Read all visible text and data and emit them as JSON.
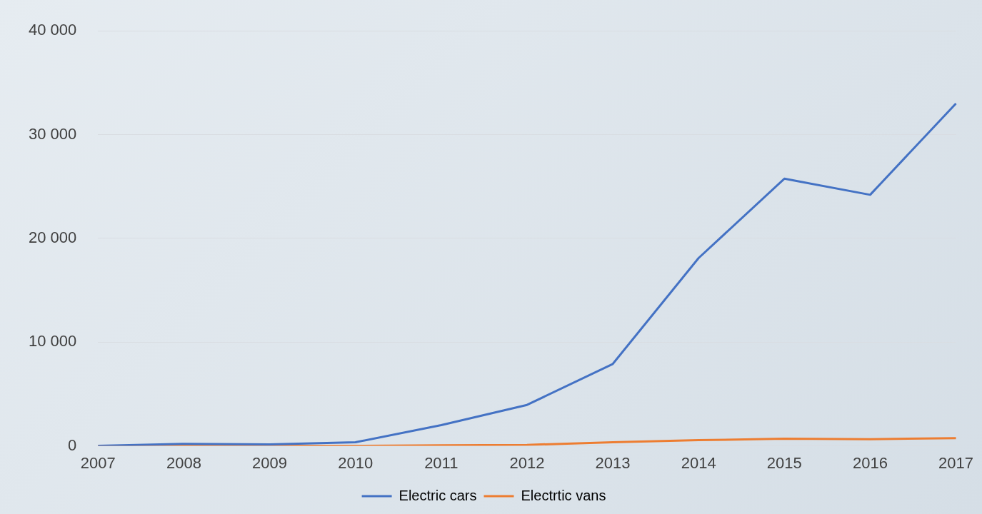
{
  "chart_data": {
    "type": "line",
    "categories": [
      "2007",
      "2008",
      "2009",
      "2010",
      "2011",
      "2012",
      "2013",
      "2014",
      "2015",
      "2016",
      "2017"
    ],
    "series": [
      {
        "name": "Electric cars",
        "color": "#4472c4",
        "values": [
          0,
          200,
          150,
          350,
          2000,
          3950,
          7900,
          18100,
          25750,
          24200,
          33000
        ]
      },
      {
        "name": "Electrtic vans",
        "color": "#ed7d31",
        "values": [
          0,
          0,
          0,
          10,
          50,
          100,
          350,
          550,
          700,
          650,
          750
        ]
      }
    ],
    "ylim": [
      0,
      40000
    ],
    "yticks": [
      {
        "value": 0,
        "label": "0"
      },
      {
        "value": 10000,
        "label": "10 000"
      },
      {
        "value": 20000,
        "label": "20 000"
      },
      {
        "value": 30000,
        "label": "30 000"
      },
      {
        "value": 40000,
        "label": "40 000"
      }
    ],
    "grid": "y",
    "legend": "bottom",
    "marker": "none",
    "line_style": "solid"
  }
}
